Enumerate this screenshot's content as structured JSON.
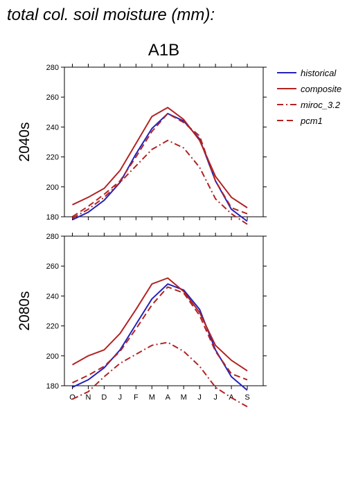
{
  "page_title": "total col. soil moisture (mm):",
  "chart_data": {
    "type": "line",
    "title": "A1B",
    "categories": [
      "O",
      "N",
      "D",
      "J",
      "F",
      "M",
      "A",
      "M",
      "J",
      "J",
      "A",
      "S"
    ],
    "ylim": [
      180,
      280
    ],
    "ytick_labels": [
      "180",
      "200",
      "220",
      "240",
      "260",
      "280"
    ],
    "legend": {
      "placement": "right",
      "entries": [
        {
          "label": "historical",
          "color": "#2222bb",
          "dash": "solid"
        },
        {
          "label": "composite",
          "color": "#b22222",
          "dash": "solid"
        },
        {
          "label": "miroc_3.2",
          "color": "#b22222",
          "dash": "dashdot"
        },
        {
          "label": "pcm1",
          "color": "#b22222",
          "dash": "dashed"
        }
      ]
    },
    "panels": [
      {
        "label": "2040s",
        "series": [
          {
            "name": "historical",
            "values": [
              178,
              183,
              191,
              203,
              222,
              239,
              249,
              244,
              232,
              204,
              185,
              177
            ]
          },
          {
            "name": "composite",
            "values": [
              188,
              193,
              199,
              211,
              229,
              247,
              253,
              245,
              231,
              207,
              193,
              186
            ]
          },
          {
            "name": "miroc_3.2",
            "values": [
              179,
              185,
              193,
              203,
              214,
              225,
              231,
              226,
              213,
              192,
              182,
              175
            ]
          },
          {
            "name": "pcm1",
            "values": [
              180,
              187,
              195,
              204,
              220,
              237,
              249,
              243,
              234,
              204,
              186,
              182
            ]
          }
        ]
      },
      {
        "label": "2080s",
        "series": [
          {
            "name": "historical",
            "values": [
              179,
              184,
              192,
              204,
              221,
              238,
              248,
              244,
              231,
              204,
              186,
              177
            ]
          },
          {
            "name": "composite",
            "values": [
              194,
              200,
              204,
              215,
              231,
              248,
              252,
              243,
              229,
              207,
              197,
              190
            ]
          },
          {
            "name": "miroc_3.2",
            "values": [
              171,
              176,
              186,
              195,
              201,
              207,
              209,
              203,
              193,
              179,
              172,
              166
            ]
          },
          {
            "name": "pcm1",
            "values": [
              182,
              187,
              193,
              203,
              218,
              234,
              246,
              242,
              227,
              203,
              188,
              184
            ]
          }
        ]
      }
    ]
  }
}
